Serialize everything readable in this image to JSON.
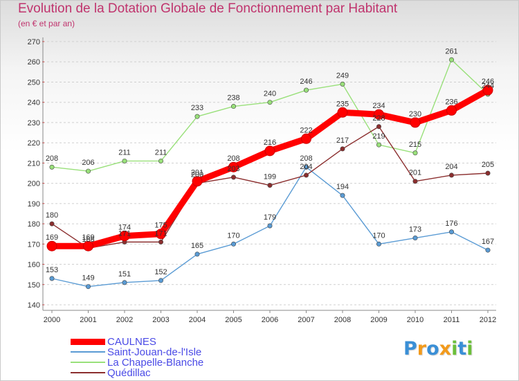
{
  "chart_data": {
    "type": "line",
    "title": "Evolution de la Dotation Globale de Fonctionnement par Habitant",
    "subtitle": "(en € et par an)",
    "xlabel": "",
    "ylabel": "",
    "ylim": [
      140,
      270
    ],
    "ytick_step": 10,
    "grid": "horizontal dashed",
    "categories": [
      "2000",
      "2001",
      "2002",
      "2003",
      "2004",
      "2005",
      "2006",
      "2007",
      "2008",
      "2009",
      "2010",
      "2011",
      "2012"
    ],
    "series": [
      {
        "name": "CAULNES",
        "color": "#ff0000",
        "values": [
          169,
          169,
          174,
          175,
          201,
          208,
          216,
          222,
          235,
          234,
          230,
          236,
          246
        ]
      },
      {
        "name": "Saint-Jouan-de-l'Isle",
        "color": "#5a9bd4",
        "values": [
          153,
          149,
          151,
          152,
          165,
          170,
          179,
          208,
          194,
          170,
          173,
          176,
          167
        ]
      },
      {
        "name": "La Chapelle-Blanche",
        "color": "#99e07a",
        "values": [
          208,
          206,
          211,
          211,
          233,
          238,
          240,
          246,
          249,
          219,
          215,
          261,
          244
        ]
      },
      {
        "name": "Quédillac",
        "color": "#8b2e2e",
        "values": [
          180,
          168,
          171,
          171,
          200,
          203,
          199,
          204,
          217,
          228,
          201,
          204,
          205
        ]
      }
    ]
  },
  "brand": {
    "letters": [
      {
        "char": "P",
        "color": "#3a8fd6"
      },
      {
        "char": "r",
        "color": "#f29a1b"
      },
      {
        "char": "o",
        "color": "#3a8fd6"
      },
      {
        "char": "x",
        "color": "#f29a1b"
      },
      {
        "char": "i",
        "color": "#6cbf3a"
      },
      {
        "char": "t",
        "color": "#3a8fd6"
      },
      {
        "char": "i",
        "color": "#6cbf3a"
      }
    ]
  }
}
